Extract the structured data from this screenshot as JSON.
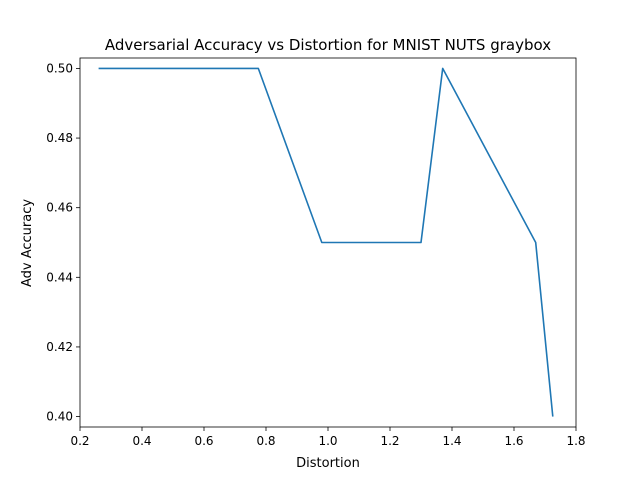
{
  "chart_data": {
    "type": "line",
    "title": "Adversarial Accuracy vs Distortion for MNIST NUTS graybox",
    "xlabel": "Distortion",
    "ylabel": "Adv Accuracy",
    "xlim": [
      0.2,
      1.8
    ],
    "ylim": [
      0.397,
      0.503
    ],
    "xticks": [
      0.2,
      0.4,
      0.6,
      0.8,
      1.0,
      1.2,
      1.4,
      1.6,
      1.8
    ],
    "xtick_labels": [
      "0.2",
      "0.4",
      "0.6",
      "0.8",
      "1.0",
      "1.2",
      "1.4",
      "1.6",
      "1.8"
    ],
    "yticks": [
      0.4,
      0.42,
      0.44,
      0.46,
      0.48,
      0.5
    ],
    "ytick_labels": [
      "0.40",
      "0.42",
      "0.44",
      "0.46",
      "0.48",
      "0.50"
    ],
    "grid": false,
    "series": [
      {
        "color": "#1f77b4",
        "x": [
          0.26,
          0.775,
          0.98,
          1.3,
          1.37,
          1.67,
          1.725
        ],
        "y": [
          0.5,
          0.5,
          0.45,
          0.45,
          0.5,
          0.45,
          0.4
        ]
      }
    ]
  }
}
